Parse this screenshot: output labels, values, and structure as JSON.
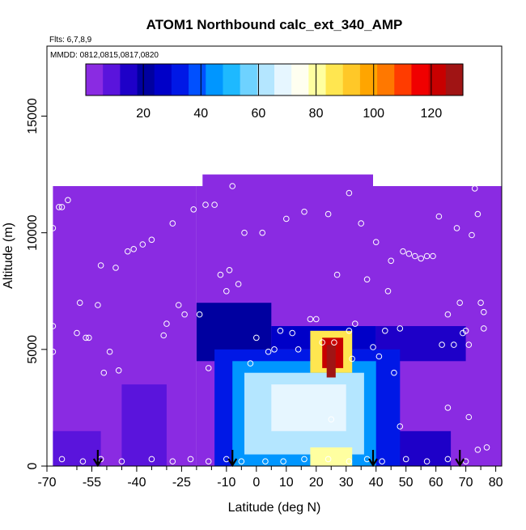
{
  "chart_data": {
    "type": "heatmap",
    "title": "ATOM1 Northbound calc_ext_340_AMP",
    "flights_label": "Flts: 6,7,8,9",
    "dates_label": "MMDD: 0812,0815,0817,0820",
    "xlabel": "Latitude (deg N)",
    "ylabel": "Altitude (m)",
    "xlim": [
      -70,
      82
    ],
    "ylim": [
      0,
      18000
    ],
    "x_ticks": [
      -70,
      -55,
      -40,
      -25,
      -10,
      0,
      10,
      20,
      30,
      40,
      50,
      60,
      70,
      80
    ],
    "x_tick_labels": [
      "-70",
      "-55",
      "-40",
      "-25",
      "-10",
      "0",
      "10",
      "20",
      "30",
      "40",
      "50",
      "60",
      "70",
      "80"
    ],
    "x_minor_ticks": [
      -60,
      -50,
      -45,
      -35,
      -30,
      -20,
      -15,
      -5,
      5,
      15,
      25,
      35,
      45,
      55,
      65,
      75
    ],
    "y_ticks": [
      0,
      5000,
      10000,
      15000
    ],
    "y_tick_labels": [
      "0",
      "5000",
      "10000",
      "15000"
    ],
    "colorbar": {
      "min": 0,
      "max": 131,
      "ticks": [
        20,
        40,
        60,
        80,
        100,
        120
      ],
      "tick_labels": [
        "20",
        "40",
        "60",
        "80",
        "100",
        "120"
      ],
      "colors": [
        "#8a2be2",
        "#5a14dc",
        "#1e00c8",
        "#0000a0",
        "#0000c8",
        "#0018e6",
        "#0050ff",
        "#0096ff",
        "#1eb9ff",
        "#6ed2ff",
        "#b4e6ff",
        "#e6f6ff",
        "#fffff0",
        "#ffffa0",
        "#ffe650",
        "#ffc828",
        "#ffa500",
        "#ff7800",
        "#ff3c00",
        "#f00000",
        "#c80000",
        "#a01414"
      ]
    },
    "grid": false,
    "field_blocks": [
      {
        "lat": [
          -68,
          -20
        ],
        "alt": [
          0,
          12000
        ],
        "value": 5
      },
      {
        "lat": [
          -20,
          82
        ],
        "alt": [
          0,
          12000
        ],
        "value": 5
      },
      {
        "lat": [
          -18,
          39
        ],
        "alt": [
          12000,
          12500
        ],
        "value": 5
      },
      {
        "lat": [
          -68,
          -52
        ],
        "alt": [
          0,
          1500
        ],
        "value": 8
      },
      {
        "lat": [
          -45,
          -30
        ],
        "alt": [
          0,
          3500
        ],
        "value": 10
      },
      {
        "lat": [
          -20,
          5
        ],
        "alt": [
          4500,
          7000
        ],
        "value": 22
      },
      {
        "lat": [
          5,
          40
        ],
        "alt": [
          5000,
          6000
        ],
        "value": 24
      },
      {
        "lat": [
          40,
          70
        ],
        "alt": [
          4500,
          6000
        ],
        "value": 16
      },
      {
        "lat": [
          40,
          65
        ],
        "alt": [
          0,
          1500
        ],
        "value": 14
      },
      {
        "lat": [
          -14,
          48
        ],
        "alt": [
          0,
          5000
        ],
        "value": 30
      },
      {
        "lat": [
          -8,
          40
        ],
        "alt": [
          0,
          4500
        ],
        "value": 45
      },
      {
        "lat": [
          -4,
          36
        ],
        "alt": [
          500,
          4000
        ],
        "value": 62
      },
      {
        "lat": [
          5,
          30
        ],
        "alt": [
          1500,
          3500
        ],
        "value": 68
      },
      {
        "lat": [
          18,
          32
        ],
        "alt": [
          0,
          800
        ],
        "value": 80
      },
      {
        "lat": [
          18,
          32
        ],
        "alt": [
          4000,
          5800
        ],
        "value": 85
      },
      {
        "lat": [
          22,
          29
        ],
        "alt": [
          4200,
          5500
        ],
        "value": 122
      },
      {
        "lat": [
          23.5,
          26.5
        ],
        "alt": [
          3800,
          5200
        ],
        "value": 131
      }
    ],
    "observation_points": [
      [
        -68,
        4900
      ],
      [
        -68,
        6000
      ],
      [
        -68,
        10200
      ],
      [
        -66,
        11100
      ],
      [
        -65,
        11100
      ],
      [
        -63,
        11400
      ],
      [
        -60,
        5700
      ],
      [
        -59,
        7000
      ],
      [
        -57,
        5500
      ],
      [
        -56,
        5500
      ],
      [
        -53,
        6900
      ],
      [
        -52,
        8600
      ],
      [
        -51,
        4000
      ],
      [
        -49,
        4900
      ],
      [
        -47,
        8500
      ],
      [
        -46,
        4100
      ],
      [
        -43,
        9200
      ],
      [
        -41,
        9300
      ],
      [
        -38,
        9500
      ],
      [
        -35,
        9700
      ],
      [
        -31,
        5600
      ],
      [
        -30,
        6100
      ],
      [
        -28,
        10400
      ],
      [
        -26,
        6900
      ],
      [
        -24,
        6500
      ],
      [
        -21,
        11000
      ],
      [
        -19,
        6500
      ],
      [
        -17,
        11200
      ],
      [
        -16,
        4200
      ],
      [
        -14,
        11200
      ],
      [
        -12,
        8200
      ],
      [
        -10,
        7500
      ],
      [
        -9,
        8400
      ],
      [
        -8,
        12000
      ],
      [
        -6,
        7800
      ],
      [
        -4,
        10000
      ],
      [
        -2,
        4400
      ],
      [
        0,
        5500
      ],
      [
        2,
        10000
      ],
      [
        4,
        4900
      ],
      [
        6,
        5000
      ],
      [
        8,
        5800
      ],
      [
        10,
        10600
      ],
      [
        12,
        5700
      ],
      [
        14,
        5000
      ],
      [
        16,
        10900
      ],
      [
        18,
        6300
      ],
      [
        20,
        6300
      ],
      [
        22,
        5300
      ],
      [
        24,
        10800
      ],
      [
        25,
        2000
      ],
      [
        26,
        5300
      ],
      [
        27,
        8200
      ],
      [
        31,
        5800
      ],
      [
        31,
        11700
      ],
      [
        32,
        4600
      ],
      [
        33,
        6100
      ],
      [
        35,
        10400
      ],
      [
        37,
        8000
      ],
      [
        39,
        5100
      ],
      [
        40,
        9600
      ],
      [
        41,
        4700
      ],
      [
        43,
        5800
      ],
      [
        44,
        7500
      ],
      [
        45,
        8800
      ],
      [
        46,
        4000
      ],
      [
        48,
        5900
      ],
      [
        48,
        1700
      ],
      [
        49,
        9200
      ],
      [
        51,
        9100
      ],
      [
        53,
        9000
      ],
      [
        55,
        8900
      ],
      [
        57,
        9000
      ],
      [
        59,
        9000
      ],
      [
        61,
        10700
      ],
      [
        62,
        5200
      ],
      [
        64,
        2500
      ],
      [
        64,
        6500
      ],
      [
        66,
        5200
      ],
      [
        67,
        10200
      ],
      [
        68,
        7000
      ],
      [
        69,
        5700
      ],
      [
        70,
        5800
      ],
      [
        71,
        2100
      ],
      [
        71,
        5200
      ],
      [
        72,
        9900
      ],
      [
        73,
        11900
      ],
      [
        74,
        10800
      ],
      [
        75,
        7000
      ],
      [
        76,
        5900
      ],
      [
        76,
        6600
      ],
      [
        77,
        800
      ],
      [
        74,
        700
      ],
      [
        -65,
        300
      ],
      [
        -58,
        200
      ],
      [
        -52,
        300
      ],
      [
        -45,
        200
      ],
      [
        -35,
        300
      ],
      [
        -28,
        200
      ],
      [
        -22,
        300
      ],
      [
        -16,
        200
      ],
      [
        -10,
        300
      ],
      [
        -5,
        200
      ],
      [
        3,
        200
      ],
      [
        9,
        200
      ],
      [
        16,
        300
      ],
      [
        24,
        300
      ],
      [
        31,
        200
      ],
      [
        37,
        300
      ],
      [
        42,
        200
      ],
      [
        50,
        300
      ],
      [
        57,
        200
      ],
      [
        64,
        300
      ],
      [
        70,
        200
      ]
    ],
    "flight_markers_lat": [
      -53,
      -8,
      39,
      68
    ]
  }
}
